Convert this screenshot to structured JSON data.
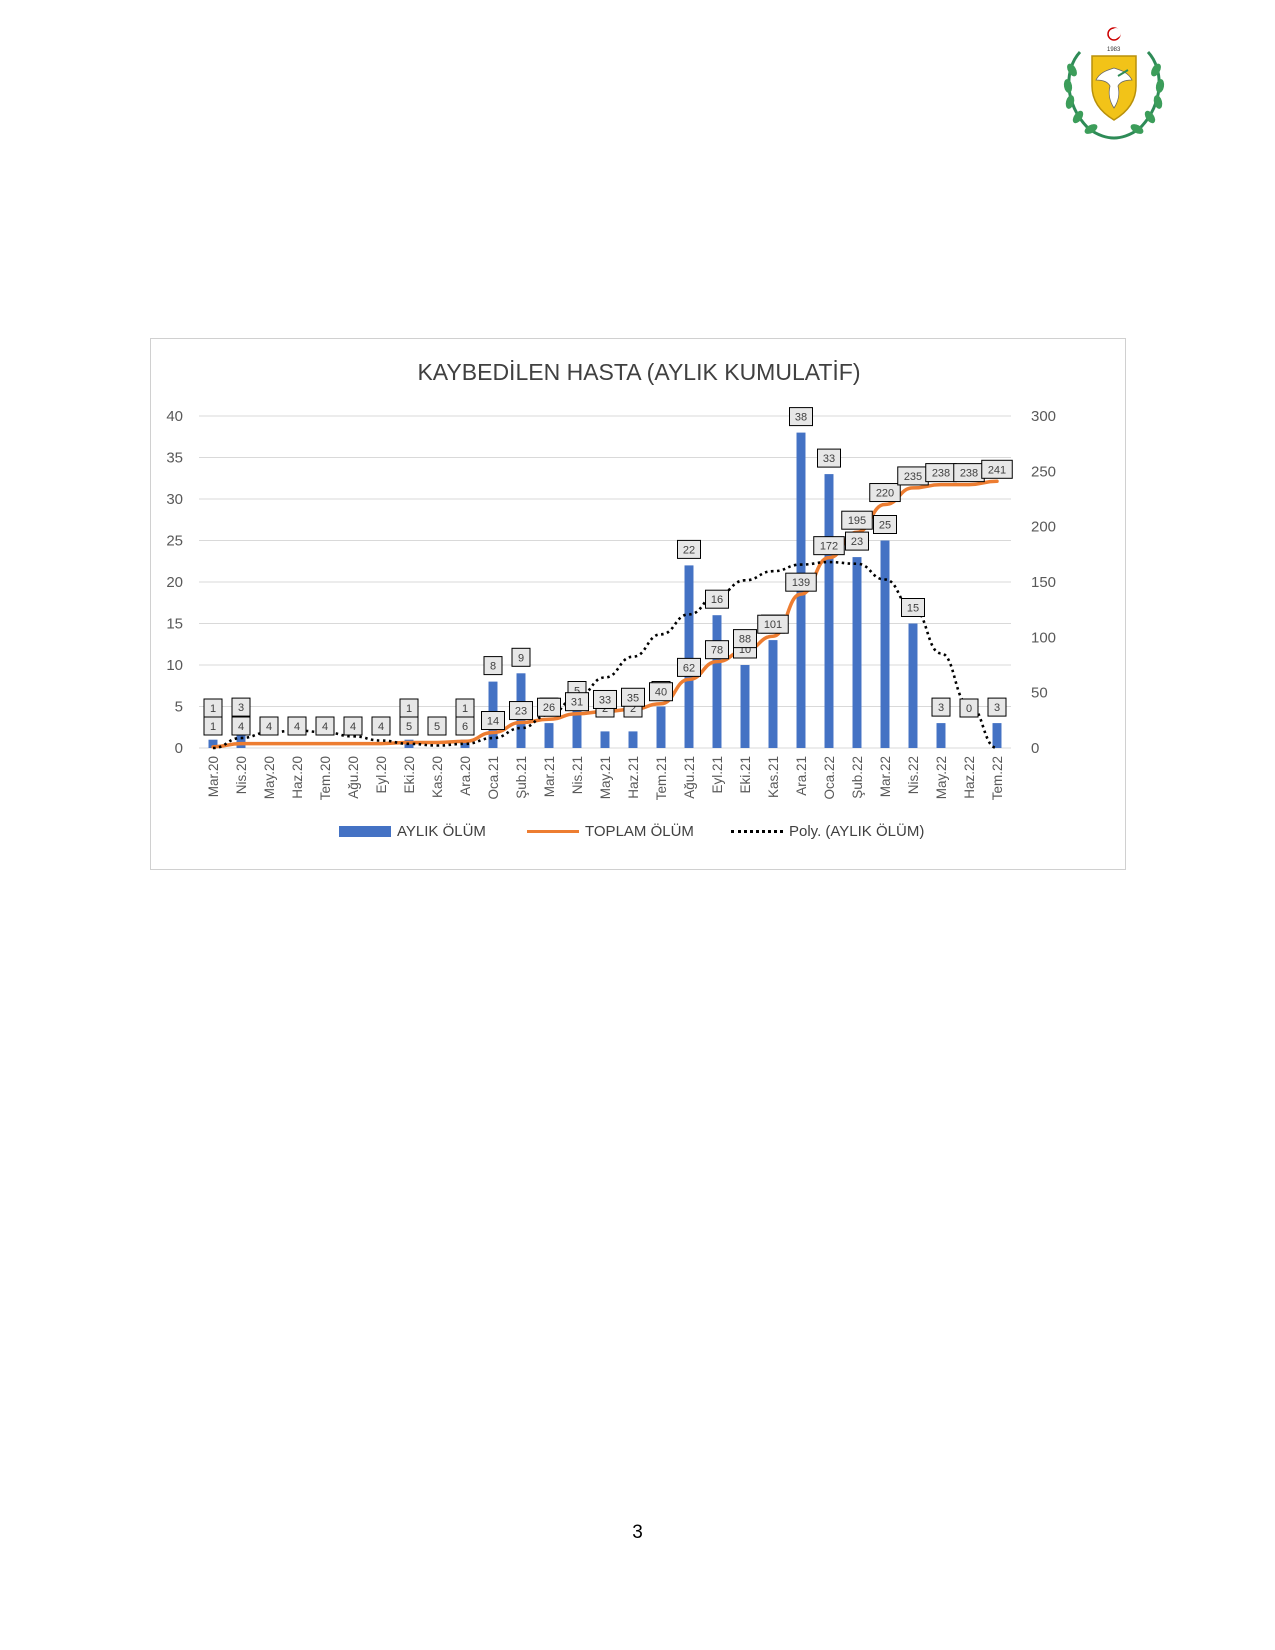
{
  "page": {
    "number": "3"
  },
  "emblem": {
    "icon": "cyprus-coat-of-arms-icon",
    "year_text": "1960"
  },
  "colors": {
    "bar": "#4472c4",
    "line": "#ed7d31",
    "trend": "#000000",
    "grid": "#d9d9d9",
    "text": "#595959"
  },
  "chart_data": {
    "type": "bar",
    "title": "KAYBEDİLEN HASTA (AYLIK KUMULATİF)",
    "categories": [
      "Mar.20",
      "Nis.20",
      "May.20",
      "Haz.20",
      "Tem.20",
      "Ağu.20",
      "Eyl.20",
      "Eki.20",
      "Kas.20",
      "Ara.20",
      "Oca.21",
      "Şub.21",
      "Mar.21",
      "Nis.21",
      "May.21",
      "Haz.21",
      "Tem.21",
      "Ağu.21",
      "Eyl.21",
      "Eki.21",
      "Kas.21",
      "Ara.21",
      "Oca.22",
      "Şub.22",
      "Mar.22",
      "Nis.22",
      "May.22",
      "Haz.22",
      "Tem.22"
    ],
    "series": [
      {
        "name": "AYLIK ÖLÜM",
        "kind": "bar",
        "axis": "left",
        "values": [
          1,
          3,
          0,
          0,
          0,
          0,
          0,
          1,
          0,
          1,
          8,
          9,
          3,
          5,
          2,
          2,
          5,
          22,
          16,
          10,
          13,
          38,
          33,
          23,
          25,
          15,
          3,
          0,
          3
        ]
      },
      {
        "name": "TOPLAM ÖLÜM",
        "kind": "line",
        "axis": "right",
        "values": [
          1,
          4,
          4,
          4,
          4,
          4,
          4,
          5,
          5,
          6,
          14,
          23,
          26,
          31,
          33,
          35,
          40,
          62,
          78,
          88,
          101,
          139,
          172,
          195,
          220,
          235,
          238,
          238,
          241
        ]
      },
      {
        "name": "Poly. (AYLIK ÖLÜM)",
        "kind": "trendline",
        "axis": "left",
        "values": [
          0,
          1.2,
          1.9,
          2.1,
          1.9,
          1.4,
          0.9,
          0.5,
          0.3,
          0.5,
          1.2,
          2.4,
          4.0,
          6.1,
          8.5,
          11.0,
          13.7,
          16.1,
          18.4,
          20.2,
          21.3,
          22.1,
          22.4,
          22.2,
          20.3,
          16.8,
          11.4,
          5.2,
          -1
        ]
      }
    ],
    "bar_labels": [
      "1",
      "3",
      "",
      "",
      "",
      "",
      "",
      "1",
      "",
      "1",
      "8",
      "9",
      "3",
      "5",
      "2",
      "2",
      "5",
      "22",
      "16",
      "10",
      "13",
      "38",
      "33",
      "23",
      "25",
      "15",
      "3",
      "0",
      "3"
    ],
    "line_labels": [
      "1",
      "4",
      "4",
      "4",
      "4",
      "4",
      "4",
      "5",
      "5",
      "6",
      "14",
      "23",
      "26",
      "31",
      "33",
      "35",
      "40",
      "62",
      "78",
      "88",
      "101",
      "139",
      "172",
      "195",
      "220",
      "235",
      "238",
      "238",
      "241"
    ],
    "y_left": {
      "min": 0,
      "max": 40,
      "ticks": [
        "0",
        "5",
        "10",
        "15",
        "20",
        "25",
        "30",
        "35",
        "40"
      ]
    },
    "y_right": {
      "min": 0,
      "max": 300,
      "ticks": [
        "0",
        "50",
        "100",
        "150",
        "200",
        "250",
        "300"
      ]
    },
    "grid": true,
    "legend_position": "bottom"
  }
}
